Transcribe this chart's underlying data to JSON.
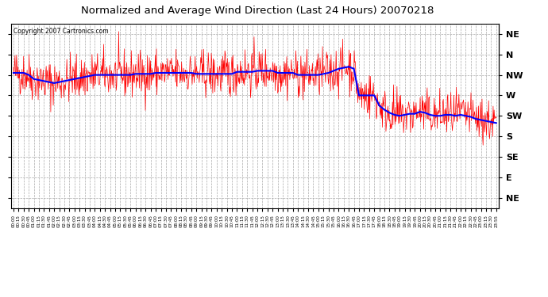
{
  "title": "Normalized and Average Wind Direction (Last 24 Hours) 20070218",
  "copyright": "Copyright 2007 Cartronics.com",
  "background_color": "#ffffff",
  "red_color": "#ff0000",
  "blue_color": "#0000ff",
  "grid_color": "#aaaaaa",
  "y_labels": [
    "NE",
    "N",
    "NW",
    "W",
    "SW",
    "S",
    "SE",
    "E",
    "NE"
  ],
  "y_tick_vals": [
    8,
    7,
    6,
    5,
    4,
    3,
    2,
    1,
    0
  ],
  "ylim": [
    -0.5,
    8.5
  ],
  "x_tick_labels": [
    "00:00",
    "00:15",
    "00:30",
    "00:45",
    "01:00",
    "01:15",
    "01:30",
    "01:45",
    "02:00",
    "02:15",
    "02:30",
    "02:45",
    "03:00",
    "03:15",
    "03:30",
    "03:45",
    "04:00",
    "04:15",
    "04:30",
    "04:45",
    "05:00",
    "05:15",
    "05:30",
    "05:45",
    "06:00",
    "06:15",
    "06:30",
    "06:45",
    "07:00",
    "07:15",
    "07:30",
    "07:45",
    "08:00",
    "08:15",
    "08:30",
    "08:45",
    "09:00",
    "09:15",
    "09:30",
    "09:45",
    "10:00",
    "10:15",
    "10:30",
    "10:45",
    "11:00",
    "11:15",
    "11:30",
    "11:45",
    "12:00",
    "12:15",
    "12:30",
    "12:45",
    "13:00",
    "13:15",
    "13:30",
    "13:45",
    "14:00",
    "14:15",
    "14:30",
    "14:45",
    "15:00",
    "15:15",
    "15:30",
    "15:45",
    "16:00",
    "16:15",
    "16:30",
    "16:45",
    "17:00",
    "17:15",
    "17:30",
    "17:45",
    "18:00",
    "18:15",
    "18:30",
    "18:45",
    "19:00",
    "19:15",
    "19:30",
    "19:45",
    "20:00",
    "20:15",
    "20:30",
    "20:45",
    "21:00",
    "21:15",
    "21:30",
    "21:45",
    "22:00",
    "22:15",
    "22:30",
    "22:45",
    "23:00",
    "23:15",
    "23:30",
    "23:55"
  ],
  "n_ticks": 96,
  "n_dense": 960,
  "noise_scale": 0.55,
  "seed": 42,
  "avg_data_96": [
    6.1,
    6.1,
    6.1,
    6.0,
    5.8,
    5.75,
    5.7,
    5.65,
    5.6,
    5.65,
    5.7,
    5.75,
    5.8,
    5.85,
    5.9,
    5.95,
    6.0,
    6.0,
    6.0,
    6.0,
    6.0,
    6.0,
    6.0,
    6.0,
    6.05,
    6.05,
    6.05,
    6.05,
    6.1,
    6.1,
    6.1,
    6.1,
    6.1,
    6.1,
    6.1,
    6.1,
    6.05,
    6.05,
    6.05,
    6.05,
    6.05,
    6.05,
    6.05,
    6.05,
    6.15,
    6.15,
    6.15,
    6.15,
    6.2,
    6.2,
    6.2,
    6.2,
    6.1,
    6.1,
    6.1,
    6.1,
    6.0,
    6.0,
    6.0,
    6.0,
    6.0,
    6.05,
    6.1,
    6.2,
    6.3,
    6.35,
    6.4,
    6.3,
    5.0,
    5.0,
    5.0,
    5.0,
    4.5,
    4.3,
    4.15,
    4.05,
    4.0,
    4.05,
    4.1,
    4.1,
    4.2,
    4.15,
    4.05,
    4.0,
    4.0,
    4.05,
    4.05,
    4.0,
    4.05,
    4.0,
    3.95,
    3.85,
    3.8,
    3.75,
    3.7,
    3.65
  ]
}
